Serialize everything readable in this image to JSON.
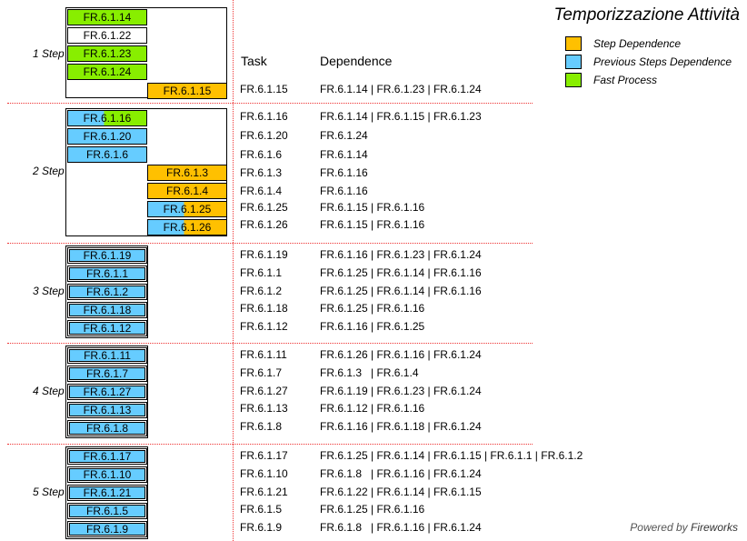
{
  "title": "Temporizzazione Attività",
  "powered_prefix": "Powered by",
  "powered_brand": "Fireworks",
  "colors": {
    "step_dependence": "#ffc000",
    "previous_steps_dependence": "#66ccff",
    "fast_process": "#88ee00",
    "none": "#ffffff"
  },
  "legend": [
    {
      "label": "Step Dependence",
      "color": "#ffc000"
    },
    {
      "label": "Previous Steps Dependence",
      "color": "#66ccff"
    },
    {
      "label": "Fast Process",
      "color": "#88ee00"
    }
  ],
  "headers": {
    "task": "Task",
    "dependence": "Dependence"
  },
  "steps": [
    {
      "label": "1 Step",
      "boxes": [
        {
          "id": "FR.6.1.14",
          "type": "fast_process",
          "col": 0
        },
        {
          "id": "FR.6.1.22",
          "type": "none",
          "col": 0
        },
        {
          "id": "FR.6.1.23",
          "type": "fast_process",
          "col": 0
        },
        {
          "id": "FR.6.1.24",
          "type": "fast_process",
          "col": 0
        },
        {
          "id": "FR.6.1.15",
          "type": "step_dependence",
          "col": 1
        }
      ],
      "rows": [
        {
          "task": "FR.6.1.15",
          "dep": "FR.6.1.14 | FR.6.1.23 | FR.6.1.24"
        }
      ]
    },
    {
      "label": "2 Step",
      "boxes": [
        {
          "id": "FR.6.1.16",
          "type": "previous_steps_dependence",
          "split": "fast_process",
          "col": 0
        },
        {
          "id": "FR.6.1.20",
          "type": "previous_steps_dependence",
          "col": 0
        },
        {
          "id": "FR.6.1.6",
          "type": "previous_steps_dependence",
          "col": 0
        },
        {
          "id": "FR.6.1.3",
          "type": "step_dependence",
          "col": 1
        },
        {
          "id": "FR.6.1.4",
          "type": "step_dependence",
          "col": 1
        },
        {
          "id": "FR.6.1.25",
          "type": "previous_steps_dependence",
          "split": "step_dependence",
          "col": 1
        },
        {
          "id": "FR.6.1.26",
          "type": "previous_steps_dependence",
          "split": "step_dependence",
          "col": 1
        }
      ],
      "rows": [
        {
          "task": "FR.6.1.16",
          "dep": "FR.6.1.14 | FR.6.1.15 | FR.6.1.23"
        },
        {
          "task": "FR.6.1.20",
          "dep": "FR.6.1.24"
        },
        {
          "task": "FR.6.1.6",
          "dep": "FR.6.1.14"
        },
        {
          "task": "FR.6.1.3",
          "dep": "FR.6.1.16"
        },
        {
          "task": "FR.6.1.4",
          "dep": "FR.6.1.16"
        },
        {
          "task": "FR.6.1.25",
          "dep": "FR.6.1.15 | FR.6.1.16"
        },
        {
          "task": "FR.6.1.26",
          "dep": "FR.6.1.15 | FR.6.1.16"
        }
      ]
    },
    {
      "label": "3 Step",
      "boxes": [
        {
          "id": "FR.6.1.19",
          "type": "previous_steps_dependence",
          "col": 0
        },
        {
          "id": "FR.6.1.1",
          "type": "previous_steps_dependence",
          "col": 0
        },
        {
          "id": "FR.6.1.2",
          "type": "previous_steps_dependence",
          "col": 0
        },
        {
          "id": "FR.6.1.18",
          "type": "previous_steps_dependence",
          "col": 0
        },
        {
          "id": "FR.6.1.12",
          "type": "previous_steps_dependence",
          "col": 0
        }
      ],
      "rows": [
        {
          "task": "FR.6.1.19",
          "dep": "FR.6.1.16 | FR.6.1.23 | FR.6.1.24"
        },
        {
          "task": "FR.6.1.1",
          "dep": "FR.6.1.25 | FR.6.1.14 | FR.6.1.16"
        },
        {
          "task": "FR.6.1.2",
          "dep": "FR.6.1.25 | FR.6.1.14 | FR.6.1.16"
        },
        {
          "task": "FR.6.1.18",
          "dep": "FR.6.1.25 | FR.6.1.16"
        },
        {
          "task": "FR.6.1.12",
          "dep": "FR.6.1.16 | FR.6.1.25"
        }
      ]
    },
    {
      "label": "4 Step",
      "boxes": [
        {
          "id": "FR.6.1.11",
          "type": "previous_steps_dependence",
          "col": 0
        },
        {
          "id": "FR.6.1.7",
          "type": "previous_steps_dependence",
          "col": 0
        },
        {
          "id": "FR.6.1.27",
          "type": "previous_steps_dependence",
          "col": 0
        },
        {
          "id": "FR.6.1.13",
          "type": "previous_steps_dependence",
          "col": 0
        },
        {
          "id": "FR.6.1.8",
          "type": "previous_steps_dependence",
          "col": 0
        }
      ],
      "rows": [
        {
          "task": "FR.6.1.11",
          "dep": "FR.6.1.26 | FR.6.1.16 | FR.6.1.24"
        },
        {
          "task": "FR.6.1.7",
          "dep": "FR.6.1.3   | FR.6.1.4"
        },
        {
          "task": "FR.6.1.27",
          "dep": "FR.6.1.19 | FR.6.1.23 | FR.6.1.24"
        },
        {
          "task": "FR.6.1.13",
          "dep": "FR.6.1.12 | FR.6.1.16"
        },
        {
          "task": "FR.6.1.8",
          "dep": "FR.6.1.16 | FR.6.1.18 | FR.6.1.24"
        }
      ]
    },
    {
      "label": "5 Step",
      "boxes": [
        {
          "id": "FR.6.1.17",
          "type": "previous_steps_dependence",
          "col": 0
        },
        {
          "id": "FR.6.1.10",
          "type": "previous_steps_dependence",
          "col": 0
        },
        {
          "id": "FR.6.1.21",
          "type": "previous_steps_dependence",
          "col": 0
        },
        {
          "id": "FR.6.1.5",
          "type": "previous_steps_dependence",
          "col": 0
        },
        {
          "id": "FR.6.1.9",
          "type": "previous_steps_dependence",
          "col": 0
        }
      ],
      "rows": [
        {
          "task": "FR.6.1.17",
          "dep": "FR.6.1.25 | FR.6.1.14 | FR.6.1.15 | FR.6.1.1 | FR.6.1.2"
        },
        {
          "task": "FR.6.1.10",
          "dep": "FR.6.1.8   | FR.6.1.16 | FR.6.1.24"
        },
        {
          "task": "FR.6.1.21",
          "dep": "FR.6.1.22 | FR.6.1.14 | FR.6.1.15"
        },
        {
          "task": "FR.6.1.5",
          "dep": "FR.6.1.25 | FR.6.1.16"
        },
        {
          "task": "FR.6.1.9",
          "dep": "FR.6.1.8   | FR.6.1.16 | FR.6.1.24"
        }
      ]
    }
  ]
}
